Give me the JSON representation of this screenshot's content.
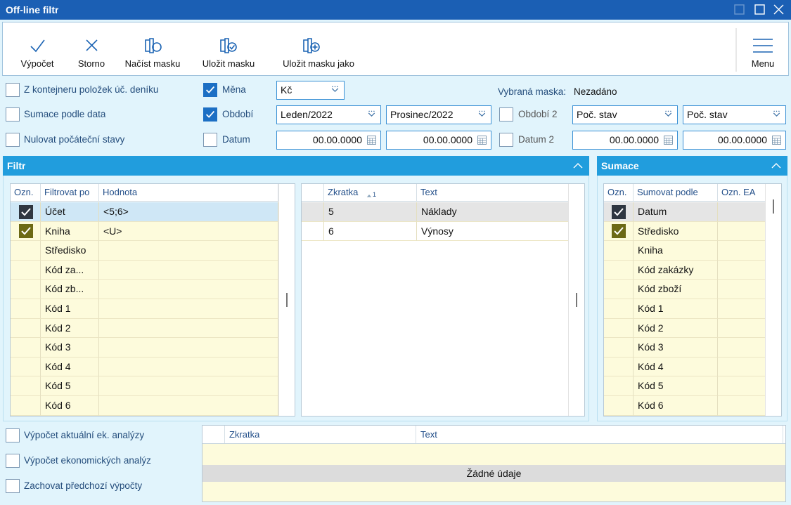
{
  "window": {
    "title": "Off-line filtr"
  },
  "toolbar": {
    "buttons": [
      "Výpočet",
      "Storno",
      "Načíst masku",
      "Uložit masku",
      "Uložit masku jako"
    ],
    "menu": "Menu"
  },
  "options": {
    "checkboxes": [
      {
        "label": "Z kontejneru položek úč. deníku",
        "checked": false
      },
      {
        "label": "Sumace podle data",
        "checked": false
      },
      {
        "label": "Nulovat počáteční stavy",
        "checked": false
      }
    ],
    "mena": {
      "label": "Měna",
      "checked": true,
      "value": "Kč"
    },
    "obdobi": {
      "label": "Období",
      "checked": true,
      "from": "Leden/2022",
      "to": "Prosinec/2022"
    },
    "datum": {
      "label": "Datum",
      "checked": false,
      "from": "00.00.0000",
      "to": "00.00.0000"
    },
    "vybrana_maska": {
      "label": "Vybraná maska:",
      "value": "Nezadáno"
    },
    "obdobi2": {
      "label": "Období 2",
      "checked": false,
      "from": "Poč. stav",
      "to": "Poč. stav"
    },
    "datum2": {
      "label": "Datum 2",
      "checked": false,
      "from": "00.00.0000",
      "to": "00.00.0000"
    }
  },
  "filtr": {
    "title": "Filtr",
    "table": {
      "columns": [
        "Ozn.",
        "Filtrovat po",
        "Hodnota"
      ],
      "rows": [
        {
          "checked": true,
          "field": "Účet",
          "value": "<5;6>"
        },
        {
          "checked": true,
          "field": "Kniha",
          "value": "<U>"
        },
        {
          "checked": false,
          "field": "Středisko"
        },
        {
          "checked": false,
          "field": "Kód za..."
        },
        {
          "checked": false,
          "field": "Kód zb..."
        },
        {
          "checked": false,
          "field": "Kód 1"
        },
        {
          "checked": false,
          "field": "Kód 2"
        },
        {
          "checked": false,
          "field": "Kód 3"
        },
        {
          "checked": false,
          "field": "Kód 4"
        },
        {
          "checked": false,
          "field": "Kód 5"
        },
        {
          "checked": false,
          "field": "Kód 6"
        }
      ]
    },
    "detail": {
      "columns": [
        "Zkratka",
        "Text"
      ],
      "sort_index": 1,
      "rows": [
        [
          "5",
          "Náklady"
        ],
        [
          "6",
          "Výnosy"
        ]
      ]
    }
  },
  "sumace": {
    "title": "Sumace",
    "table": {
      "columns": [
        "Ozn.",
        "Sumovat podle",
        "Ozn. EA"
      ],
      "rows": [
        {
          "checked": true,
          "field": "Datum"
        },
        {
          "checked": true,
          "field": "Středisko"
        },
        {
          "checked": false,
          "field": "Kniha"
        },
        {
          "checked": false,
          "field": "Kód zakázky"
        },
        {
          "checked": false,
          "field": "Kód zboží"
        },
        {
          "checked": false,
          "field": "Kód 1"
        },
        {
          "checked": false,
          "field": "Kód 2"
        },
        {
          "checked": false,
          "field": "Kód 3"
        },
        {
          "checked": false,
          "field": "Kód 4"
        },
        {
          "checked": false,
          "field": "Kód 5"
        },
        {
          "checked": false,
          "field": "Kód 6"
        }
      ]
    }
  },
  "bottom": {
    "checkboxes": [
      {
        "label": "Výpočet aktuální ek. analýzy",
        "checked": false
      },
      {
        "label": "Výpočet ekonomických analýz",
        "checked": false
      },
      {
        "label": "Zachovat předchozí výpočty",
        "checked": false
      }
    ],
    "table": {
      "columns": [
        "Zkratka",
        "Text"
      ],
      "empty": "Žádné údaje"
    }
  }
}
